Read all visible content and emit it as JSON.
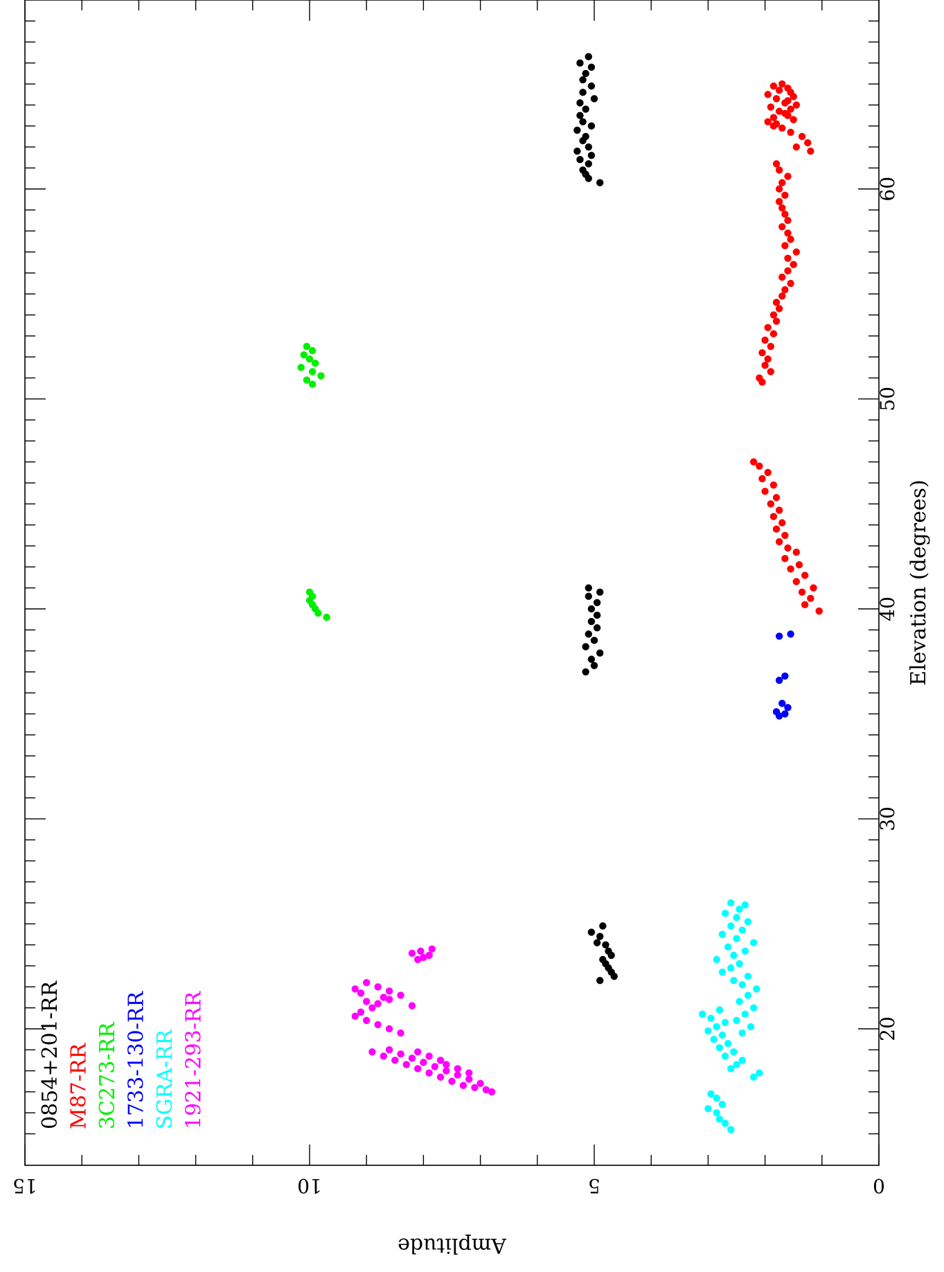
{
  "chart_data": {
    "type": "scatter",
    "orientation": "rotated-90-clockwise",
    "xlabel": "Elevation (degrees)",
    "ylabel": "Amplitude",
    "xlim": [
      13.5,
      69
    ],
    "ylim": [
      0,
      15
    ],
    "x_ticks": [
      20,
      30,
      40,
      50,
      60
    ],
    "y_ticks": [
      0,
      5,
      10,
      15
    ],
    "grid": false,
    "legend_position": "top-left",
    "series": [
      {
        "name": "0854+201-RR",
        "color": "#000000",
        "points": [
          [
            24.6,
            5.05
          ],
          [
            24.9,
            4.85
          ],
          [
            24.4,
            4.9
          ],
          [
            24.1,
            4.95
          ],
          [
            24.0,
            4.8
          ],
          [
            23.7,
            4.75
          ],
          [
            23.5,
            4.7
          ],
          [
            23.3,
            4.85
          ],
          [
            23.1,
            4.8
          ],
          [
            22.9,
            4.75
          ],
          [
            22.7,
            4.7
          ],
          [
            22.5,
            4.65
          ],
          [
            22.3,
            4.9
          ],
          [
            37.0,
            5.15
          ],
          [
            37.3,
            5.0
          ],
          [
            37.6,
            5.05
          ],
          [
            37.9,
            4.9
          ],
          [
            38.2,
            5.15
          ],
          [
            38.5,
            5.0
          ],
          [
            38.8,
            5.1
          ],
          [
            39.1,
            4.95
          ],
          [
            39.4,
            5.05
          ],
          [
            39.7,
            4.95
          ],
          [
            40.0,
            5.05
          ],
          [
            40.3,
            4.95
          ],
          [
            40.6,
            5.1
          ],
          [
            40.8,
            4.9
          ],
          [
            41.0,
            5.1
          ],
          [
            60.3,
            4.9
          ],
          [
            60.5,
            5.1
          ],
          [
            60.7,
            5.15
          ],
          [
            60.9,
            5.2
          ],
          [
            61.2,
            5.1
          ],
          [
            61.4,
            5.25
          ],
          [
            61.6,
            5.05
          ],
          [
            61.8,
            5.3
          ],
          [
            62.0,
            5.1
          ],
          [
            62.3,
            5.2
          ],
          [
            62.5,
            5.15
          ],
          [
            62.8,
            5.3
          ],
          [
            63.0,
            5.05
          ],
          [
            63.2,
            5.2
          ],
          [
            63.5,
            5.25
          ],
          [
            63.8,
            5.15
          ],
          [
            64.1,
            5.25
          ],
          [
            64.3,
            5.0
          ],
          [
            64.6,
            5.2
          ],
          [
            64.9,
            5.05
          ],
          [
            65.2,
            5.2
          ],
          [
            65.5,
            5.15
          ],
          [
            65.8,
            5.05
          ],
          [
            66.0,
            5.25
          ],
          [
            66.3,
            5.1
          ]
        ]
      },
      {
        "name": "M87-RR",
        "color": "#ff0000",
        "points": [
          [
            39.9,
            1.05
          ],
          [
            40.2,
            1.3
          ],
          [
            40.5,
            1.2
          ],
          [
            40.8,
            1.35
          ],
          [
            41.0,
            1.15
          ],
          [
            41.3,
            1.45
          ],
          [
            41.6,
            1.3
          ],
          [
            41.9,
            1.55
          ],
          [
            42.1,
            1.4
          ],
          [
            42.4,
            1.65
          ],
          [
            42.7,
            1.45
          ],
          [
            42.9,
            1.6
          ],
          [
            43.2,
            1.75
          ],
          [
            43.5,
            1.65
          ],
          [
            43.8,
            1.8
          ],
          [
            44.1,
            1.7
          ],
          [
            44.4,
            1.85
          ],
          [
            44.7,
            1.75
          ],
          [
            45.0,
            1.9
          ],
          [
            45.3,
            1.8
          ],
          [
            45.6,
            2.0
          ],
          [
            45.9,
            1.85
          ],
          [
            46.2,
            2.05
          ],
          [
            46.5,
            1.95
          ],
          [
            46.8,
            2.1
          ],
          [
            47.0,
            2.2
          ],
          [
            50.8,
            2.05
          ],
          [
            51.0,
            2.1
          ],
          [
            51.3,
            1.9
          ],
          [
            51.6,
            2.0
          ],
          [
            51.9,
            1.95
          ],
          [
            52.2,
            2.05
          ],
          [
            52.5,
            1.9
          ],
          [
            52.8,
            2.0
          ],
          [
            53.1,
            1.85
          ],
          [
            53.4,
            1.95
          ],
          [
            53.7,
            1.8
          ],
          [
            54.0,
            1.85
          ],
          [
            54.3,
            1.75
          ],
          [
            54.6,
            1.8
          ],
          [
            54.9,
            1.7
          ],
          [
            55.2,
            1.65
          ],
          [
            55.5,
            1.55
          ],
          [
            55.8,
            1.7
          ],
          [
            56.1,
            1.6
          ],
          [
            56.4,
            1.5
          ],
          [
            56.7,
            1.6
          ],
          [
            57.0,
            1.45
          ],
          [
            57.3,
            1.65
          ],
          [
            57.6,
            1.55
          ],
          [
            57.9,
            1.6
          ],
          [
            58.2,
            1.7
          ],
          [
            58.5,
            1.6
          ],
          [
            58.8,
            1.65
          ],
          [
            59.1,
            1.7
          ],
          [
            59.4,
            1.75
          ],
          [
            59.7,
            1.65
          ],
          [
            60.0,
            1.75
          ],
          [
            60.3,
            1.7
          ],
          [
            60.6,
            1.6
          ],
          [
            60.9,
            1.75
          ],
          [
            61.2,
            1.8
          ],
          [
            61.8,
            1.2
          ],
          [
            62.0,
            1.45
          ],
          [
            62.2,
            1.25
          ],
          [
            62.5,
            1.35
          ],
          [
            62.7,
            1.55
          ],
          [
            62.9,
            1.7
          ],
          [
            63.1,
            1.8
          ],
          [
            63.3,
            1.5
          ],
          [
            63.5,
            1.6
          ],
          [
            63.7,
            1.75
          ],
          [
            63.9,
            1.9
          ],
          [
            64.1,
            1.65
          ],
          [
            64.3,
            1.8
          ],
          [
            64.5,
            1.95
          ],
          [
            64.7,
            1.75
          ],
          [
            64.9,
            1.85
          ],
          [
            65.0,
            1.7
          ],
          [
            64.8,
            1.6
          ],
          [
            64.6,
            1.55
          ],
          [
            64.4,
            1.5
          ],
          [
            64.2,
            1.6
          ],
          [
            64.0,
            1.45
          ],
          [
            63.8,
            1.55
          ],
          [
            63.6,
            1.65
          ],
          [
            63.4,
            1.85
          ],
          [
            63.2,
            1.95
          ],
          [
            63.0,
            1.85
          ]
        ]
      },
      {
        "name": "3C273-RR",
        "color": "#00ee00",
        "points": [
          [
            39.6,
            9.7
          ],
          [
            39.8,
            9.85
          ],
          [
            40.0,
            9.9
          ],
          [
            40.2,
            9.95
          ],
          [
            40.4,
            10.0
          ],
          [
            40.6,
            9.95
          ],
          [
            40.8,
            10.0
          ],
          [
            50.7,
            9.95
          ],
          [
            50.9,
            10.05
          ],
          [
            51.1,
            9.8
          ],
          [
            51.3,
            9.95
          ],
          [
            51.5,
            10.15
          ],
          [
            51.7,
            9.9
          ],
          [
            51.9,
            10.0
          ],
          [
            52.1,
            10.1
          ],
          [
            52.3,
            9.95
          ],
          [
            52.5,
            10.05
          ]
        ]
      },
      {
        "name": "1733-130-RR",
        "color": "#0000ff",
        "points": [
          [
            34.9,
            1.75
          ],
          [
            35.0,
            1.65
          ],
          [
            35.1,
            1.8
          ],
          [
            35.3,
            1.6
          ],
          [
            35.5,
            1.7
          ],
          [
            36.6,
            1.75
          ],
          [
            36.8,
            1.65
          ],
          [
            38.7,
            1.75
          ],
          [
            38.8,
            1.55
          ]
        ]
      },
      {
        "name": "SGRA-RR",
        "color": "#00ffff",
        "points": [
          [
            15.2,
            2.6
          ],
          [
            15.5,
            2.7
          ],
          [
            15.7,
            2.8
          ],
          [
            16.0,
            2.85
          ],
          [
            16.2,
            3.0
          ],
          [
            16.4,
            2.75
          ],
          [
            16.7,
            2.85
          ],
          [
            16.9,
            2.95
          ],
          [
            17.7,
            2.2
          ],
          [
            17.9,
            2.1
          ],
          [
            18.1,
            2.6
          ],
          [
            18.3,
            2.5
          ],
          [
            18.5,
            2.4
          ],
          [
            18.7,
            2.7
          ],
          [
            18.9,
            2.55
          ],
          [
            19.1,
            2.8
          ],
          [
            19.3,
            2.65
          ],
          [
            19.5,
            2.9
          ],
          [
            19.7,
            2.75
          ],
          [
            19.9,
            3.0
          ],
          [
            20.1,
            2.85
          ],
          [
            20.3,
            2.7
          ],
          [
            20.5,
            2.95
          ],
          [
            20.7,
            3.1
          ],
          [
            20.9,
            2.8
          ],
          [
            19.8,
            2.4
          ],
          [
            20.1,
            2.25
          ],
          [
            20.4,
            2.5
          ],
          [
            20.7,
            2.35
          ],
          [
            21.0,
            2.2
          ],
          [
            21.3,
            2.45
          ],
          [
            21.6,
            2.3
          ],
          [
            21.9,
            2.15
          ],
          [
            22.1,
            2.4
          ],
          [
            22.3,
            2.55
          ],
          [
            22.5,
            2.3
          ],
          [
            22.7,
            2.75
          ],
          [
            22.9,
            2.6
          ],
          [
            23.1,
            2.45
          ],
          [
            23.3,
            2.85
          ],
          [
            23.5,
            2.55
          ],
          [
            23.7,
            2.35
          ],
          [
            23.9,
            2.65
          ],
          [
            24.1,
            2.2
          ],
          [
            24.3,
            2.5
          ],
          [
            24.5,
            2.75
          ],
          [
            24.7,
            2.4
          ],
          [
            24.9,
            2.6
          ],
          [
            25.1,
            2.3
          ],
          [
            25.3,
            2.5
          ],
          [
            25.5,
            2.7
          ],
          [
            25.7,
            2.45
          ],
          [
            25.9,
            2.35
          ],
          [
            26.0,
            2.6
          ]
        ]
      },
      {
        "name": "1921-293-RR",
        "color": "#ff00ff",
        "points": [
          [
            17.0,
            6.8
          ],
          [
            17.1,
            6.9
          ],
          [
            17.2,
            7.1
          ],
          [
            17.3,
            7.3
          ],
          [
            17.4,
            7.0
          ],
          [
            17.5,
            7.5
          ],
          [
            17.6,
            7.2
          ],
          [
            17.7,
            7.7
          ],
          [
            17.8,
            7.4
          ],
          [
            17.9,
            7.9
          ],
          [
            18.0,
            7.6
          ],
          [
            18.1,
            8.1
          ],
          [
            18.2,
            7.8
          ],
          [
            18.3,
            8.3
          ],
          [
            18.4,
            8.0
          ],
          [
            18.5,
            8.5
          ],
          [
            18.6,
            8.2
          ],
          [
            18.7,
            8.7
          ],
          [
            18.8,
            8.4
          ],
          [
            18.9,
            8.9
          ],
          [
            19.0,
            8.6
          ],
          [
            18.9,
            8.1
          ],
          [
            18.7,
            7.9
          ],
          [
            18.5,
            7.7
          ],
          [
            18.3,
            7.6
          ],
          [
            18.1,
            7.4
          ],
          [
            17.9,
            7.2
          ],
          [
            19.8,
            8.4
          ],
          [
            20.0,
            8.6
          ],
          [
            20.2,
            8.8
          ],
          [
            20.4,
            9.0
          ],
          [
            20.6,
            9.2
          ],
          [
            20.8,
            9.1
          ],
          [
            21.0,
            8.9
          ],
          [
            21.2,
            8.8
          ],
          [
            21.4,
            8.6
          ],
          [
            21.6,
            8.4
          ],
          [
            21.8,
            8.6
          ],
          [
            22.0,
            8.8
          ],
          [
            22.2,
            9.0
          ],
          [
            21.9,
            9.2
          ],
          [
            21.7,
            9.1
          ],
          [
            21.5,
            8.7
          ],
          [
            21.3,
            9.0
          ],
          [
            21.1,
            8.2
          ],
          [
            23.3,
            8.1
          ],
          [
            23.4,
            8.0
          ],
          [
            23.5,
            7.9
          ],
          [
            23.6,
            8.2
          ],
          [
            23.7,
            8.05
          ],
          [
            23.8,
            7.85
          ]
        ]
      }
    ]
  }
}
